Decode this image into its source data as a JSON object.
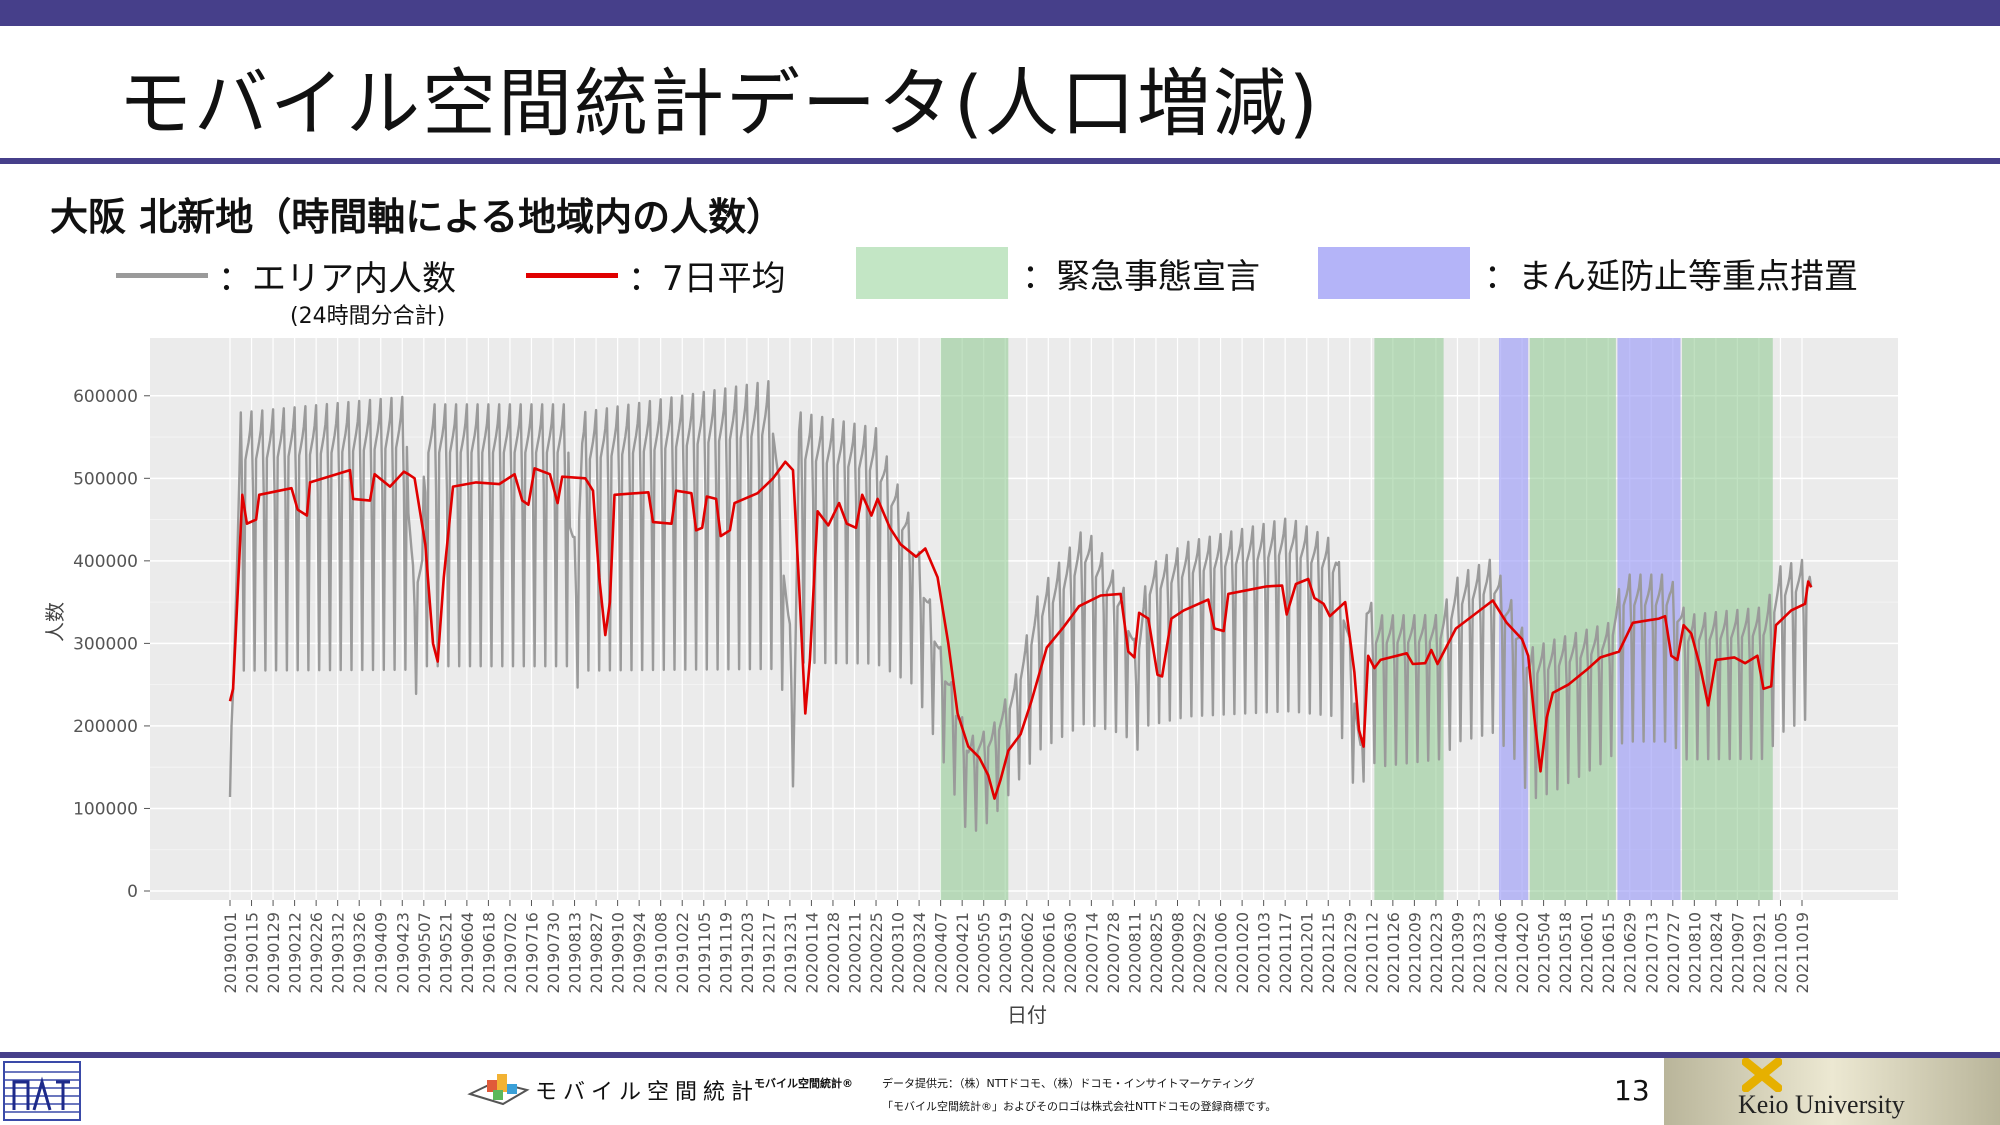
{
  "slide": {
    "title": "モバイル空間統計データ(人口増減)",
    "subtitle": "大阪 北新地（時間軸による地域内の人数）",
    "page_number": "13"
  },
  "legend": {
    "area_count_label": "：エリア内人数",
    "area_count_note": "(24時間分合計)",
    "avg_label": "：7日平均",
    "emergency_label": "：緊急事態宣言",
    "semi_emergency_label": "：まん延防止等重点措置",
    "colors": {
      "area_count": "#9a9a9a",
      "avg": "#e00000",
      "emergency": "#c3e6c5",
      "semi_emergency": "#b4b4f8"
    }
  },
  "footer": {
    "moba_logo_text": "モバイル空間統計",
    "brand": "モバイル空間統計®",
    "provider": "データ提供元：（株）NTTドコモ、（株）ドコモ・インサイトマーケティング",
    "trademark": "「モバイル空間統計®」およびそのロゴは株式会社NTTドコモの登録商標です。",
    "university": "Keio University"
  },
  "chart_data": {
    "type": "line",
    "xlabel": "日付",
    "ylabel": "人数",
    "ylim": [
      0,
      670000
    ],
    "yticks": [
      0,
      100000,
      200000,
      300000,
      400000,
      500000,
      600000
    ],
    "x_start": "2019-01-01",
    "x_end": "2021-11-01",
    "xtick_labels": [
      "20190101",
      "20190115",
      "20190129",
      "20190212",
      "20190226",
      "20190312",
      "20190326",
      "20190409",
      "20190423",
      "20190507",
      "20190521",
      "20190604",
      "20190618",
      "20190702",
      "20190716",
      "20190730",
      "20190813",
      "20190827",
      "20190910",
      "20190924",
      "20191008",
      "20191022",
      "20191105",
      "20191119",
      "20191203",
      "20191217",
      "20191231",
      "20200114",
      "20200128",
      "20200211",
      "20200225",
      "20200310",
      "20200324",
      "20200407",
      "20200421",
      "20200505",
      "20200519",
      "20200602",
      "20200616",
      "20200630",
      "20200714",
      "20200728",
      "20200811",
      "20200825",
      "20200908",
      "20200922",
      "20201006",
      "20201020",
      "20201103",
      "20201117",
      "20201201",
      "20201215",
      "20201229",
      "20210112",
      "20210126",
      "20210209",
      "20210223",
      "20210309",
      "20210323",
      "20210406",
      "20210420",
      "20210504",
      "20210518",
      "20210601",
      "20210615",
      "20210629",
      "20210713",
      "20210727",
      "20210810",
      "20210824",
      "20210907",
      "20210921",
      "20211005",
      "20211019"
    ],
    "grid": true,
    "emergency_periods": [
      [
        "2020-04-07",
        "2020-05-21"
      ],
      [
        "2021-01-14",
        "2021-02-28"
      ],
      [
        "2021-04-25",
        "2021-06-20"
      ],
      [
        "2021-08-02",
        "2021-09-30"
      ]
    ],
    "semi_emergency_periods": [
      [
        "2021-04-05",
        "2021-04-24"
      ],
      [
        "2021-06-21",
        "2021-08-01"
      ]
    ],
    "series": [
      {
        "name": "エリア内人数",
        "style": "weekly",
        "segments": [
          [
            "2019-01-01",
            110000,
            240000
          ],
          [
            "2019-01-08",
            590000,
            250000
          ],
          [
            "2019-04-26",
            610000,
            250000
          ],
          [
            "2019-04-27",
            500000,
            250000
          ],
          [
            "2019-04-30",
            400000,
            230000
          ],
          [
            "2019-05-06",
            420000,
            230000
          ],
          [
            "2019-05-08",
            600000,
            255000
          ],
          [
            "2019-08-09",
            600000,
            255000
          ],
          [
            "2019-08-10",
            480000,
            250000
          ],
          [
            "2019-08-14",
            420000,
            230000
          ],
          [
            "2019-08-18",
            590000,
            250000
          ],
          [
            "2019-12-20",
            630000,
            250000
          ],
          [
            "2019-12-27",
            420000,
            230000
          ],
          [
            "2020-01-03",
            260000,
            100000
          ],
          [
            "2020-01-06",
            590000,
            260000
          ],
          [
            "2020-02-25",
            570000,
            260000
          ],
          [
            "2020-03-20",
            450000,
            240000
          ],
          [
            "2020-04-07",
            300000,
            160000
          ],
          [
            "2020-04-25",
            190000,
            60000
          ],
          [
            "2020-05-10",
            200000,
            80000
          ],
          [
            "2020-05-25",
            260000,
            120000
          ],
          [
            "2020-06-10",
            370000,
            160000
          ],
          [
            "2020-07-10",
            450000,
            190000
          ],
          [
            "2020-08-05",
            370000,
            180000
          ],
          [
            "2020-08-12",
            300000,
            160000
          ],
          [
            "2020-08-20",
            400000,
            190000
          ],
          [
            "2020-09-15",
            430000,
            200000
          ],
          [
            "2020-11-20",
            460000,
            205000
          ],
          [
            "2020-12-20",
            430000,
            200000
          ],
          [
            "2020-12-28",
            330000,
            150000
          ],
          [
            "2021-01-05",
            180000,
            80000
          ],
          [
            "2021-01-09",
            370000,
            170000
          ],
          [
            "2021-01-15",
            340000,
            140000
          ],
          [
            "2021-02-25",
            340000,
            150000
          ],
          [
            "2021-03-10",
            390000,
            170000
          ],
          [
            "2021-04-01",
            410000,
            180000
          ],
          [
            "2021-04-15",
            350000,
            150000
          ],
          [
            "2021-04-25",
            300000,
            100000
          ],
          [
            "2021-05-10",
            310000,
            110000
          ],
          [
            "2021-06-15",
            330000,
            150000
          ],
          [
            "2021-06-25",
            390000,
            170000
          ],
          [
            "2021-07-25",
            390000,
            170000
          ],
          [
            "2021-08-05",
            340000,
            150000
          ],
          [
            "2021-09-25",
            350000,
            150000
          ],
          [
            "2021-10-05",
            400000,
            180000
          ],
          [
            "2021-10-24",
            410000,
            200000
          ],
          [
            "2021-10-25",
            380000,
            260000
          ]
        ]
      },
      {
        "name": "7日平均",
        "style": "line",
        "points": [
          [
            "2019-01-01",
            230000
          ],
          [
            "2019-01-03",
            245000
          ],
          [
            "2019-01-07",
            400000
          ],
          [
            "2019-01-09",
            480000
          ],
          [
            "2019-01-12",
            445000
          ],
          [
            "2019-01-18",
            450000
          ],
          [
            "2019-01-20",
            480000
          ],
          [
            "2019-02-10",
            488000
          ],
          [
            "2019-02-14",
            462000
          ],
          [
            "2019-02-20",
            455000
          ],
          [
            "2019-02-22",
            495000
          ],
          [
            "2019-03-20",
            510000
          ],
          [
            "2019-03-22",
            475000
          ],
          [
            "2019-04-02",
            473000
          ],
          [
            "2019-04-05",
            505000
          ],
          [
            "2019-04-15",
            490000
          ],
          [
            "2019-04-24",
            508000
          ],
          [
            "2019-04-27",
            505000
          ],
          [
            "2019-05-01",
            500000
          ],
          [
            "2019-05-08",
            420000
          ],
          [
            "2019-05-13",
            300000
          ],
          [
            "2019-05-16",
            278000
          ],
          [
            "2019-05-20",
            380000
          ],
          [
            "2019-05-26",
            490000
          ],
          [
            "2019-06-10",
            495000
          ],
          [
            "2019-06-25",
            493000
          ],
          [
            "2019-07-05",
            505000
          ],
          [
            "2019-07-10",
            473000
          ],
          [
            "2019-07-14",
            468000
          ],
          [
            "2019-07-18",
            512000
          ],
          [
            "2019-07-28",
            505000
          ],
          [
            "2019-08-02",
            470000
          ],
          [
            "2019-08-05",
            502000
          ],
          [
            "2019-08-20",
            500000
          ],
          [
            "2019-08-25",
            485000
          ],
          [
            "2019-08-29",
            380000
          ],
          [
            "2019-09-02",
            310000
          ],
          [
            "2019-09-05",
            350000
          ],
          [
            "2019-09-08",
            480000
          ],
          [
            "2019-09-30",
            483000
          ],
          [
            "2019-10-03",
            447000
          ],
          [
            "2019-10-15",
            445000
          ],
          [
            "2019-10-18",
            485000
          ],
          [
            "2019-10-28",
            482000
          ],
          [
            "2019-10-31",
            437000
          ],
          [
            "2019-11-04",
            440000
          ],
          [
            "2019-11-07",
            478000
          ],
          [
            "2019-11-13",
            475000
          ],
          [
            "2019-11-16",
            430000
          ],
          [
            "2019-11-22",
            437000
          ],
          [
            "2019-11-25",
            470000
          ],
          [
            "2019-12-10",
            482000
          ],
          [
            "2019-12-20",
            500000
          ],
          [
            "2019-12-28",
            520000
          ],
          [
            "2020-01-02",
            510000
          ],
          [
            "2020-01-06",
            370000
          ],
          [
            "2020-01-10",
            215000
          ],
          [
            "2020-01-13",
            280000
          ],
          [
            "2020-01-18",
            460000
          ],
          [
            "2020-01-25",
            443000
          ],
          [
            "2020-02-01",
            470000
          ],
          [
            "2020-02-06",
            445000
          ],
          [
            "2020-02-12",
            440000
          ],
          [
            "2020-02-16",
            480000
          ],
          [
            "2020-02-22",
            455000
          ],
          [
            "2020-02-26",
            475000
          ],
          [
            "2020-03-05",
            440000
          ],
          [
            "2020-03-12",
            420000
          ],
          [
            "2020-03-22",
            405000
          ],
          [
            "2020-03-28",
            415000
          ],
          [
            "2020-04-05",
            380000
          ],
          [
            "2020-04-12",
            300000
          ],
          [
            "2020-04-18",
            215000
          ],
          [
            "2020-04-25",
            175000
          ],
          [
            "2020-05-02",
            162000
          ],
          [
            "2020-05-08",
            140000
          ],
          [
            "2020-05-12",
            112000
          ],
          [
            "2020-05-16",
            135000
          ],
          [
            "2020-05-21",
            170000
          ],
          [
            "2020-05-29",
            190000
          ],
          [
            "2020-06-05",
            230000
          ],
          [
            "2020-06-15",
            295000
          ],
          [
            "2020-06-26",
            320000
          ],
          [
            "2020-07-06",
            345000
          ],
          [
            "2020-07-20",
            358000
          ],
          [
            "2020-08-02",
            360000
          ],
          [
            "2020-08-07",
            290000
          ],
          [
            "2020-08-11",
            283000
          ],
          [
            "2020-08-14",
            337000
          ],
          [
            "2020-08-20",
            330000
          ],
          [
            "2020-08-26",
            262000
          ],
          [
            "2020-08-29",
            260000
          ],
          [
            "2020-09-04",
            330000
          ],
          [
            "2020-09-12",
            340000
          ],
          [
            "2020-09-28",
            353000
          ],
          [
            "2020-10-02",
            318000
          ],
          [
            "2020-10-08",
            315000
          ],
          [
            "2020-10-11",
            360000
          ],
          [
            "2020-10-25",
            365000
          ],
          [
            "2020-11-05",
            369000
          ],
          [
            "2020-11-15",
            370000
          ],
          [
            "2020-11-18",
            335000
          ],
          [
            "2020-11-24",
            372000
          ],
          [
            "2020-12-02",
            378000
          ],
          [
            "2020-12-06",
            355000
          ],
          [
            "2020-12-12",
            348000
          ],
          [
            "2020-12-16",
            333000
          ],
          [
            "2020-12-26",
            350000
          ],
          [
            "2021-01-01",
            265000
          ],
          [
            "2021-01-04",
            195000
          ],
          [
            "2021-01-07",
            175000
          ],
          [
            "2021-01-10",
            285000
          ],
          [
            "2021-01-14",
            270000
          ],
          [
            "2021-01-18",
            280000
          ],
          [
            "2021-02-04",
            288000
          ],
          [
            "2021-02-08",
            275000
          ],
          [
            "2021-02-16",
            276000
          ],
          [
            "2021-02-20",
            292000
          ],
          [
            "2021-02-24",
            275000
          ],
          [
            "2021-03-08",
            318000
          ],
          [
            "2021-03-20",
            335000
          ],
          [
            "2021-04-01",
            352000
          ],
          [
            "2021-04-10",
            325000
          ],
          [
            "2021-04-20",
            305000
          ],
          [
            "2021-04-24",
            285000
          ],
          [
            "2021-04-28",
            210000
          ],
          [
            "2021-05-02",
            145000
          ],
          [
            "2021-05-06",
            210000
          ],
          [
            "2021-05-10",
            240000
          ],
          [
            "2021-05-20",
            250000
          ],
          [
            "2021-06-01",
            268000
          ],
          [
            "2021-06-10",
            283000
          ],
          [
            "2021-06-22",
            290000
          ],
          [
            "2021-07-01",
            325000
          ],
          [
            "2021-07-18",
            330000
          ],
          [
            "2021-07-22",
            333000
          ],
          [
            "2021-07-26",
            285000
          ],
          [
            "2021-07-30",
            280000
          ],
          [
            "2021-08-03",
            322000
          ],
          [
            "2021-08-08",
            312000
          ],
          [
            "2021-08-14",
            270000
          ],
          [
            "2021-08-19",
            225000
          ],
          [
            "2021-08-24",
            280000
          ],
          [
            "2021-09-05",
            283000
          ],
          [
            "2021-09-12",
            276000
          ],
          [
            "2021-09-20",
            285000
          ],
          [
            "2021-09-24",
            245000
          ],
          [
            "2021-09-29",
            248000
          ],
          [
            "2021-10-02",
            322000
          ],
          [
            "2021-10-12",
            340000
          ],
          [
            "2021-10-21",
            348000
          ],
          [
            "2021-10-23",
            375000
          ],
          [
            "2021-10-25",
            368000
          ]
        ]
      }
    ]
  }
}
